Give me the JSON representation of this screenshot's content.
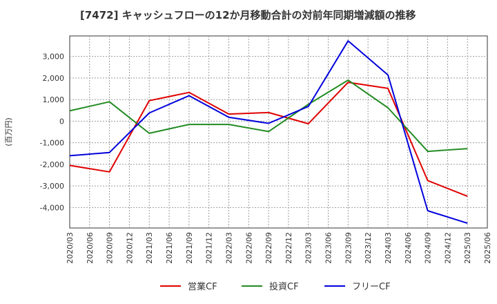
{
  "chart_data": {
    "type": "line",
    "title": "[7472]  キャッシュフローの12か月移動合計の対前年同期増減額の推移",
    "ylabel": "(百万円)",
    "xlabel": "",
    "ylim": [
      -4950,
      3950
    ],
    "grid": true,
    "legend_position": "bottom",
    "x_ticks": [
      "2020/03",
      "2020/06",
      "2020/09",
      "2020/12",
      "2021/03",
      "2021/06",
      "2021/09",
      "2021/12",
      "2022/03",
      "2022/06",
      "2022/09",
      "2022/12",
      "2023/03",
      "2023/06",
      "2023/09",
      "2023/12",
      "2024/03",
      "2024/06",
      "2024/09",
      "2024/12",
      "2025/03",
      "2025/06"
    ],
    "y_ticks": [
      3000,
      2000,
      1000,
      0,
      -1000,
      -2000,
      -3000,
      -4000
    ],
    "y_tick_labels": [
      "3,000",
      "2,000",
      "1,000",
      "0",
      "-1,000",
      "-2,000",
      "-3,000",
      "-4,000"
    ],
    "series": [
      {
        "name": "営業CF",
        "color": "#e00000",
        "x": [
          "2020/03",
          "2020/09",
          "2021/03",
          "2021/09",
          "2022/03",
          "2022/09",
          "2023/03",
          "2023/09",
          "2024/03",
          "2024/09",
          "2025/03"
        ],
        "values": [
          -2050,
          -2350,
          950,
          1330,
          330,
          400,
          -120,
          1800,
          1520,
          -2750,
          -3480
        ]
      },
      {
        "name": "投資CF",
        "color": "#228b22",
        "x": [
          "2020/03",
          "2020/09",
          "2021/03",
          "2021/09",
          "2022/03",
          "2022/09",
          "2023/03",
          "2023/09",
          "2024/03",
          "2024/09",
          "2025/03"
        ],
        "values": [
          480,
          900,
          -560,
          -150,
          -150,
          -480,
          780,
          1900,
          620,
          -1400,
          -1270
        ]
      },
      {
        "name": "フリーCF",
        "color": "#0000dd",
        "x": [
          "2020/03",
          "2020/09",
          "2021/03",
          "2021/09",
          "2022/03",
          "2022/09",
          "2023/03",
          "2023/09",
          "2024/03",
          "2024/09",
          "2025/03"
        ],
        "values": [
          -1600,
          -1450,
          380,
          1180,
          180,
          -100,
          680,
          3720,
          2140,
          -4150,
          -4730
        ]
      }
    ]
  }
}
